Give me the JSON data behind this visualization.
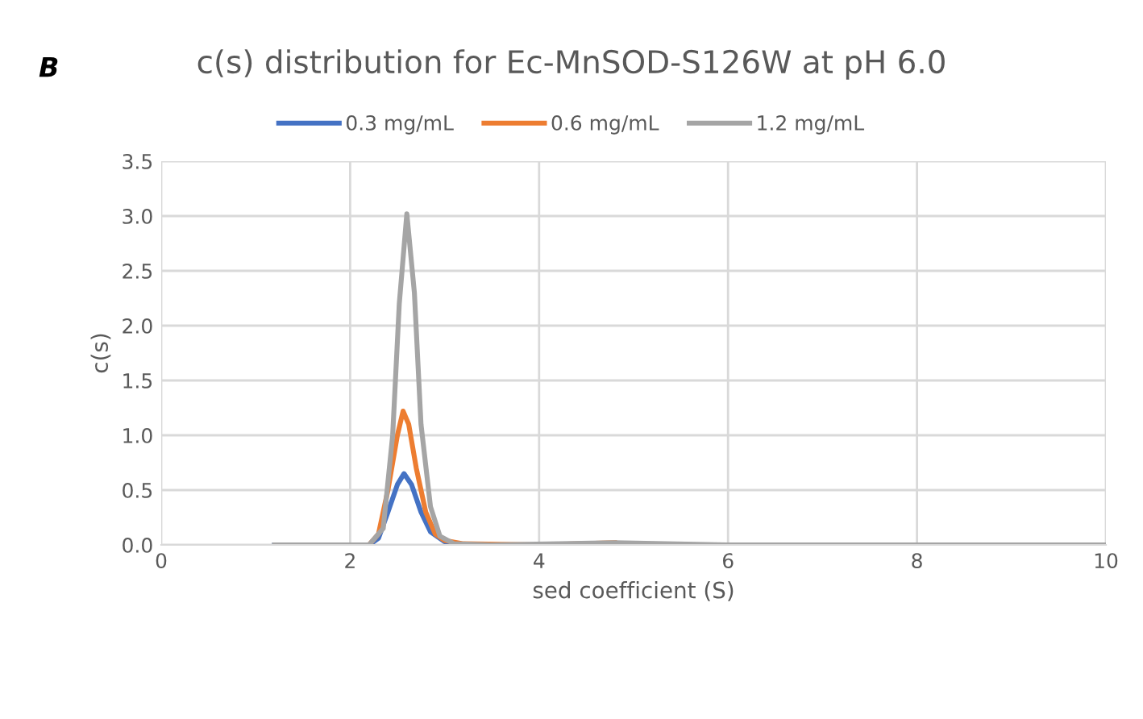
{
  "chart_data": {
    "type": "line",
    "title": "c(s) distribution for Ec-MnSOD-S126W at pH 6.0",
    "xlabel": "sed coefficient (S)",
    "ylabel": "c(s)",
    "annotations": [
      "B"
    ],
    "xlim": [
      0,
      10
    ],
    "xticks": [
      0,
      2,
      4,
      6,
      8,
      10
    ],
    "ylim": [
      0,
      3.5
    ],
    "yticks": [
      {
        "value": 0,
        "label": "0.0"
      },
      {
        "value": 0.5,
        "label": "0.5"
      },
      {
        "value": 1,
        "label": "1.0"
      },
      {
        "value": 1.5,
        "label": "1.5"
      },
      {
        "value": 2,
        "label": "2.0"
      },
      {
        "value": 2.5,
        "label": "2.5"
      },
      {
        "value": 3,
        "label": "3.0"
      },
      {
        "value": 3.5,
        "label": "3.5"
      }
    ],
    "grid": true,
    "legend": "top",
    "marker": "none",
    "line_style": "solid",
    "series": [
      {
        "name": "0.3 mg/mL",
        "color": "#4472c4",
        "x": [
          1.2,
          2.0,
          2.2,
          2.3,
          2.4,
          2.5,
          2.57,
          2.65,
          2.75,
          2.85,
          3.0,
          3.2
        ],
        "values": [
          0,
          0,
          0,
          0.06,
          0.3,
          0.55,
          0.65,
          0.55,
          0.3,
          0.12,
          0.03,
          0
        ]
      },
      {
        "name": "0.6 mg/mL",
        "color": "#ed7d31",
        "x": [
          2.2,
          2.3,
          2.4,
          2.5,
          2.56,
          2.62,
          2.7,
          2.8,
          2.9,
          3.0,
          3.2,
          4.0,
          4.8
        ],
        "values": [
          0,
          0.1,
          0.5,
          1.0,
          1.22,
          1.1,
          0.7,
          0.3,
          0.1,
          0.04,
          0.01,
          0,
          0.02
        ]
      },
      {
        "name": "1.2 mg/mL",
        "color": "#a5a5a5",
        "x": [
          1.2,
          2.0,
          2.2,
          2.35,
          2.45,
          2.52,
          2.6,
          2.68,
          2.75,
          2.85,
          2.95,
          3.1,
          3.5,
          4.8,
          6.0,
          8.0,
          10.0
        ],
        "values": [
          0,
          0,
          0,
          0.15,
          1.0,
          2.2,
          3.02,
          2.3,
          1.1,
          0.35,
          0.08,
          0.01,
          0,
          0.02,
          0,
          0,
          0
        ]
      }
    ]
  }
}
